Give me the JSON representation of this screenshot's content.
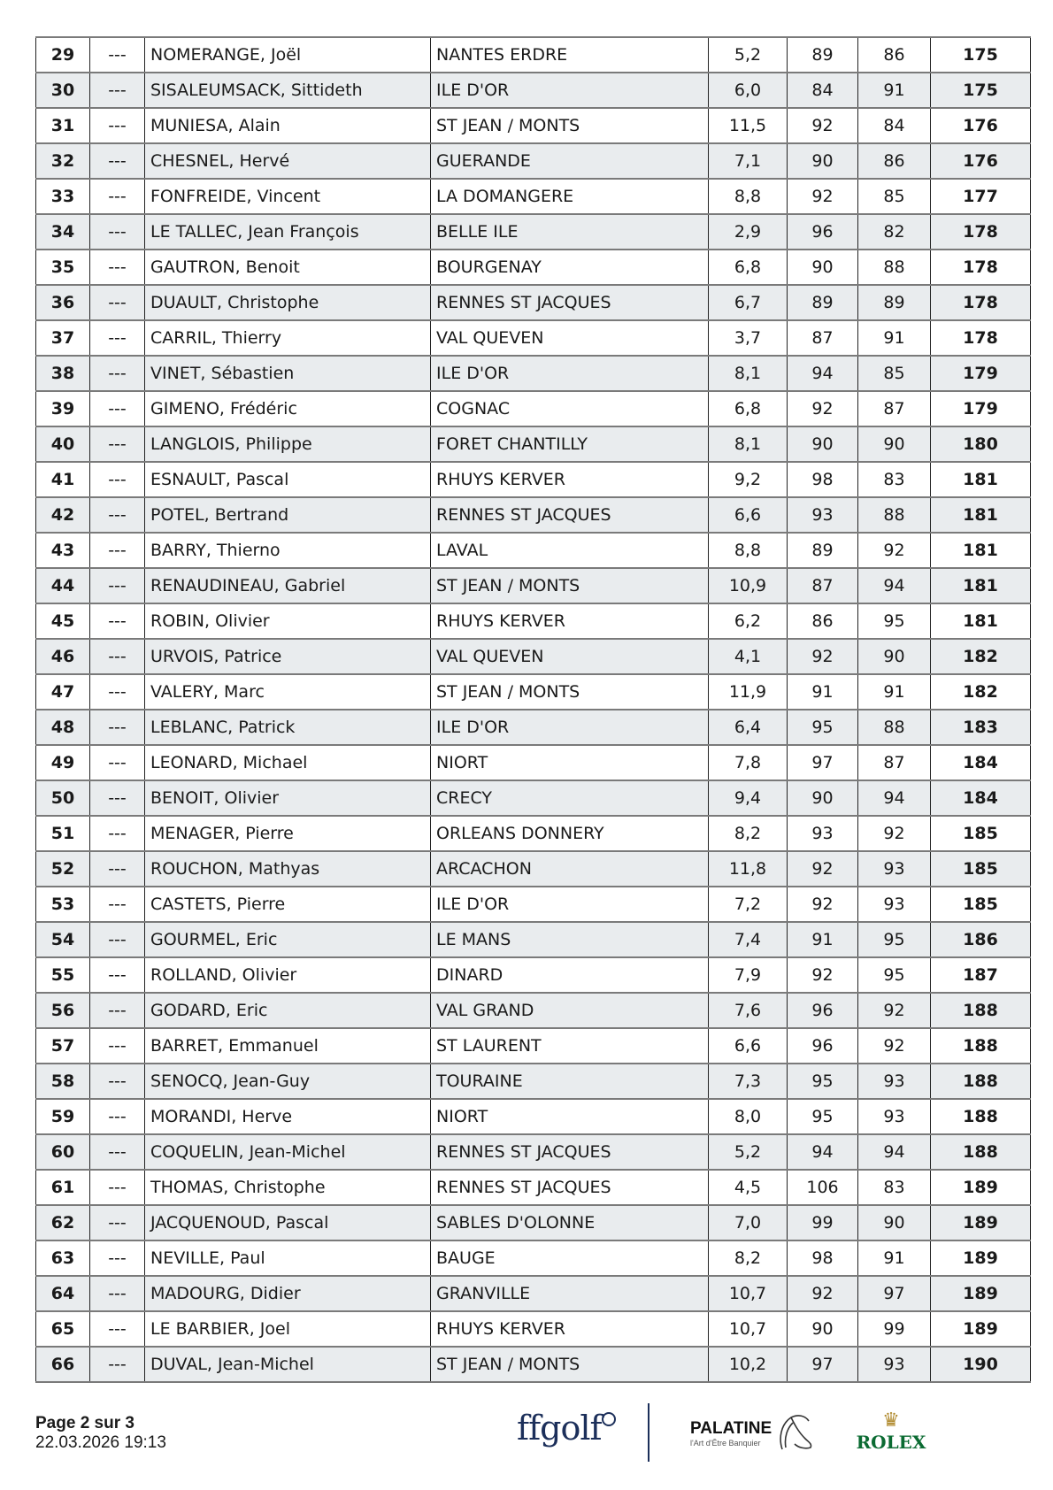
{
  "rows": [
    [
      "29",
      "---",
      "NOMERANGE, Joël",
      "NANTES ERDRE",
      "5,2",
      "89",
      "86",
      "175"
    ],
    [
      "30",
      "---",
      "SISALEUMSACK, Sittideth",
      "ILE D'OR",
      "6,0",
      "84",
      "91",
      "175"
    ],
    [
      "31",
      "---",
      "MUNIESA, Alain",
      "ST JEAN / MONTS",
      "11,5",
      "92",
      "84",
      "176"
    ],
    [
      "32",
      "---",
      "CHESNEL, Hervé",
      "GUERANDE",
      "7,1",
      "90",
      "86",
      "176"
    ],
    [
      "33",
      "---",
      "FONFREIDE, Vincent",
      "LA DOMANGERE",
      "8,8",
      "92",
      "85",
      "177"
    ],
    [
      "34",
      "---",
      "LE TALLEC, Jean François",
      "BELLE ILE",
      "2,9",
      "96",
      "82",
      "178"
    ],
    [
      "35",
      "---",
      "GAUTRON, Benoit",
      "BOURGENAY",
      "6,8",
      "90",
      "88",
      "178"
    ],
    [
      "36",
      "---",
      "DUAULT, Christophe",
      "RENNES ST JACQUES",
      "6,7",
      "89",
      "89",
      "178"
    ],
    [
      "37",
      "---",
      "CARRIL, Thierry",
      "VAL QUEVEN",
      "3,7",
      "87",
      "91",
      "178"
    ],
    [
      "38",
      "---",
      "VINET, Sébastien",
      "ILE D'OR",
      "8,1",
      "94",
      "85",
      "179"
    ],
    [
      "39",
      "---",
      "GIMENO, Frédéric",
      "COGNAC",
      "6,8",
      "92",
      "87",
      "179"
    ],
    [
      "40",
      "---",
      "LANGLOIS, Philippe",
      "FORET CHANTILLY",
      "8,1",
      "90",
      "90",
      "180"
    ],
    [
      "41",
      "---",
      "ESNAULT, Pascal",
      "RHUYS KERVER",
      "9,2",
      "98",
      "83",
      "181"
    ],
    [
      "42",
      "---",
      "POTEL, Bertrand",
      "RENNES ST JACQUES",
      "6,6",
      "93",
      "88",
      "181"
    ],
    [
      "43",
      "---",
      "BARRY, Thierno",
      "LAVAL",
      "8,8",
      "89",
      "92",
      "181"
    ],
    [
      "44",
      "---",
      "RENAUDINEAU, Gabriel",
      "ST JEAN / MONTS",
      "10,9",
      "87",
      "94",
      "181"
    ],
    [
      "45",
      "---",
      "ROBIN, Olivier",
      "RHUYS KERVER",
      "6,2",
      "86",
      "95",
      "181"
    ],
    [
      "46",
      "---",
      "URVOIS, Patrice",
      "VAL QUEVEN",
      "4,1",
      "92",
      "90",
      "182"
    ],
    [
      "47",
      "---",
      "VALERY, Marc",
      "ST JEAN / MONTS",
      "11,9",
      "91",
      "91",
      "182"
    ],
    [
      "48",
      "---",
      "LEBLANC, Patrick",
      "ILE D'OR",
      "6,4",
      "95",
      "88",
      "183"
    ],
    [
      "49",
      "---",
      "LEONARD, Michael",
      "NIORT",
      "7,8",
      "97",
      "87",
      "184"
    ],
    [
      "50",
      "---",
      "BENOIT, Olivier",
      "CRECY",
      "9,4",
      "90",
      "94",
      "184"
    ],
    [
      "51",
      "---",
      "MENAGER, Pierre",
      "ORLEANS DONNERY",
      "8,2",
      "93",
      "92",
      "185"
    ],
    [
      "52",
      "---",
      "ROUCHON, Mathyas",
      "ARCACHON",
      "11,8",
      "92",
      "93",
      "185"
    ],
    [
      "53",
      "---",
      "CASTETS, Pierre",
      "ILE D'OR",
      "7,2",
      "92",
      "93",
      "185"
    ],
    [
      "54",
      "---",
      "GOURMEL, Eric",
      "LE MANS",
      "7,4",
      "91",
      "95",
      "186"
    ],
    [
      "55",
      "---",
      "ROLLAND, Olivier",
      "DINARD",
      "7,9",
      "92",
      "95",
      "187"
    ],
    [
      "56",
      "---",
      "GODARD, Eric",
      "VAL GRAND",
      "7,6",
      "96",
      "92",
      "188"
    ],
    [
      "57",
      "---",
      "BARRET, Emmanuel",
      "ST LAURENT",
      "6,6",
      "96",
      "92",
      "188"
    ],
    [
      "58",
      "---",
      "SENOCQ, Jean-Guy",
      "TOURAINE",
      "7,3",
      "95",
      "93",
      "188"
    ],
    [
      "59",
      "---",
      "MORANDI, Herve",
      "NIORT",
      "8,0",
      "95",
      "93",
      "188"
    ],
    [
      "60",
      "---",
      "COQUELIN, Jean-Michel",
      "RENNES ST JACQUES",
      "5,2",
      "94",
      "94",
      "188"
    ],
    [
      "61",
      "---",
      "THOMAS, Christophe",
      "RENNES ST JACQUES",
      "4,5",
      "106",
      "83",
      "189"
    ],
    [
      "62",
      "---",
      "JACQUENOUD, Pascal",
      "SABLES D'OLONNE",
      "7,0",
      "99",
      "90",
      "189"
    ],
    [
      "63",
      "---",
      "NEVILLE, Paul",
      "BAUGE",
      "8,2",
      "98",
      "91",
      "189"
    ],
    [
      "64",
      "---",
      "MADOURG, Didier",
      "GRANVILLE",
      "10,7",
      "92",
      "97",
      "189"
    ],
    [
      "65",
      "---",
      "LE BARBIER, Joel",
      "RHUYS KERVER",
      "10,7",
      "90",
      "99",
      "189"
    ],
    [
      "66",
      "---",
      "DUVAL, Jean-Michel",
      "ST JEAN / MONTS",
      "10,2",
      "97",
      "93",
      "190"
    ]
  ],
  "footer": {
    "page": "Page 2 sur 3",
    "datetime": "22.03.2026 19:13",
    "logos": {
      "ffgolf": "ffgolf",
      "palatine": "PALATINE",
      "palatine_tagline": "l'Art d'Être Banquier",
      "rolex": "ROLEX"
    }
  },
  "colors": {
    "row_alt": "#e9ecee",
    "ffgolf": "#1c2f5a",
    "rolex_green": "#0b6b32",
    "rolex_gold": "#b08a2e"
  }
}
